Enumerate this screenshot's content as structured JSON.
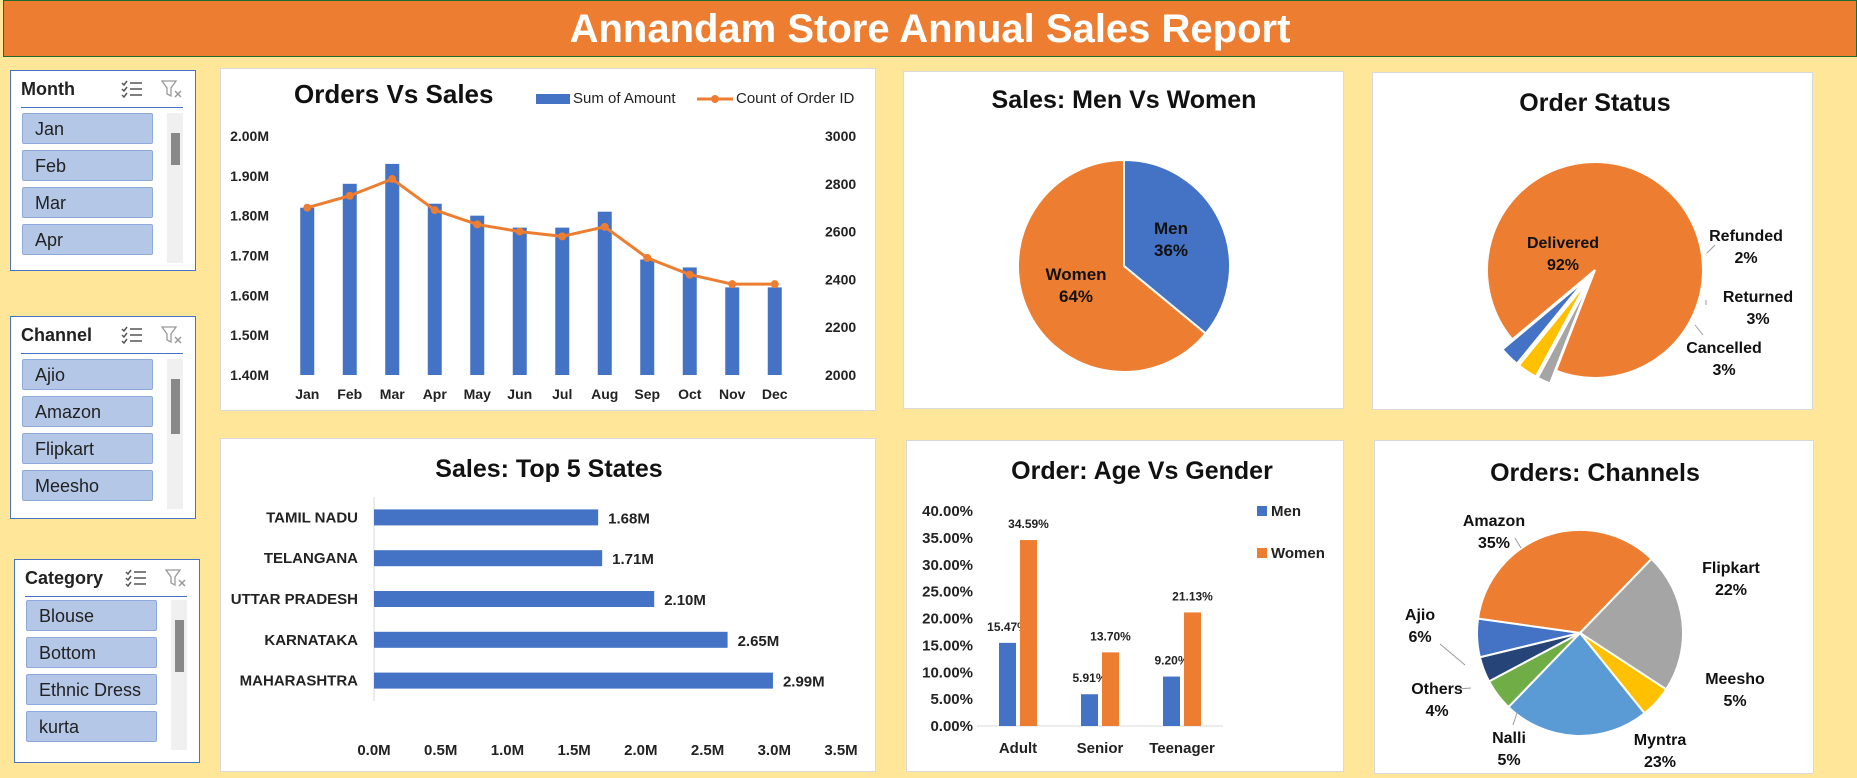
{
  "header": {
    "title": "Annandam Store Annual Sales Report"
  },
  "slicers": {
    "month": {
      "title": "Month",
      "items": [
        "Jan",
        "Feb",
        "Mar",
        "Apr"
      ]
    },
    "channel": {
      "title": "Channel",
      "items": [
        "Ajio",
        "Amazon",
        "Flipkart",
        "Meesho"
      ]
    },
    "category": {
      "title": "Category",
      "items": [
        "Blouse",
        "Bottom",
        "Ethnic Dress",
        "kurta"
      ]
    }
  },
  "colors": {
    "blue": "#4472C4",
    "orange": "#ED7D31",
    "gray": "#A5A5A5",
    "gold": "#FFC000",
    "lightblue": "#5B9BD5",
    "green": "#70AD47",
    "navy": "#264478"
  },
  "chart_data": [
    {
      "id": "orders_vs_sales",
      "type": "bar",
      "title": "Orders Vs Sales",
      "categories": [
        "Jan",
        "Feb",
        "Mar",
        "Apr",
        "May",
        "Jun",
        "Jul",
        "Aug",
        "Sep",
        "Oct",
        "Nov",
        "Dec"
      ],
      "series": [
        {
          "name": "Sum of Amount",
          "type": "bar",
          "values": [
            1.82,
            1.88,
            1.93,
            1.83,
            1.8,
            1.77,
            1.77,
            1.81,
            1.69,
            1.67,
            1.62,
            1.62
          ]
        },
        {
          "name": "Count of Order ID",
          "type": "line",
          "values": [
            2700,
            2750,
            2820,
            2690,
            2630,
            2600,
            2580,
            2620,
            2490,
            2420,
            2380,
            2380
          ]
        }
      ],
      "y_ticks": [
        "1.40M",
        "1.50M",
        "1.60M",
        "1.70M",
        "1.80M",
        "1.90M",
        "2.00M"
      ],
      "y2_ticks": [
        "2000",
        "2200",
        "2400",
        "2600",
        "2800",
        "3000"
      ],
      "ylim": [
        1.4,
        2.0
      ],
      "y2lim": [
        2000,
        3000
      ]
    },
    {
      "id": "men_vs_women",
      "type": "pie",
      "title": "Sales: Men Vs Women",
      "slices": [
        {
          "label": "Men",
          "pct": "36%",
          "value": 36
        },
        {
          "label": "Women",
          "pct": "64%",
          "value": 64
        }
      ]
    },
    {
      "id": "order_status",
      "type": "pie",
      "title": "Order Status",
      "slices": [
        {
          "label": "Delivered",
          "pct": "92%",
          "value": 92
        },
        {
          "label": "Refunded",
          "pct": "2%",
          "value": 2
        },
        {
          "label": "Returned",
          "pct": "3%",
          "value": 3
        },
        {
          "label": "Cancelled",
          "pct": "3%",
          "value": 3
        }
      ]
    },
    {
      "id": "top_states",
      "type": "bar",
      "orientation": "horizontal",
      "title": "Sales: Top 5 States",
      "categories": [
        "TAMIL NADU",
        "TELANGANA",
        "UTTAR PRADESH",
        "KARNATAKA",
        "MAHARASHTRA"
      ],
      "values": [
        1.68,
        1.71,
        2.1,
        2.65,
        2.99
      ],
      "labels": [
        "1.68M",
        "1.71M",
        "2.10M",
        "2.65M",
        "2.99M"
      ],
      "x_ticks": [
        "0.0M",
        "0.5M",
        "1.0M",
        "1.5M",
        "2.0M",
        "2.5M",
        "3.0M",
        "3.5M"
      ],
      "xlim": [
        0,
        3.5
      ]
    },
    {
      "id": "age_vs_gender",
      "type": "bar",
      "title": "Order: Age Vs Gender",
      "categories": [
        "Adult",
        "Senior",
        "Teenager"
      ],
      "series": [
        {
          "name": "Men",
          "values": [
            15.47,
            5.91,
            9.2
          ],
          "labels": [
            "15.47%",
            "5.91%",
            "9.20%"
          ]
        },
        {
          "name": "Women",
          "values": [
            34.59,
            13.7,
            21.13
          ],
          "labels": [
            "34.59%",
            "13.70%",
            "21.13%"
          ]
        }
      ],
      "y_ticks": [
        "0.00%",
        "5.00%",
        "10.00%",
        "15.00%",
        "20.00%",
        "25.00%",
        "30.00%",
        "35.00%",
        "40.00%"
      ],
      "ylim": [
        0,
        40
      ]
    },
    {
      "id": "channels",
      "type": "pie",
      "title": "Orders: Channels",
      "slices": [
        {
          "label": "Amazon",
          "pct": "35%",
          "value": 35
        },
        {
          "label": "Flipkart",
          "pct": "22%",
          "value": 22
        },
        {
          "label": "Meesho",
          "pct": "5%",
          "value": 5
        },
        {
          "label": "Myntra",
          "pct": "23%",
          "value": 23
        },
        {
          "label": "Nalli",
          "pct": "5%",
          "value": 5
        },
        {
          "label": "Others",
          "pct": "4%",
          "value": 4
        },
        {
          "label": "Ajio",
          "pct": "6%",
          "value": 6
        }
      ]
    }
  ]
}
